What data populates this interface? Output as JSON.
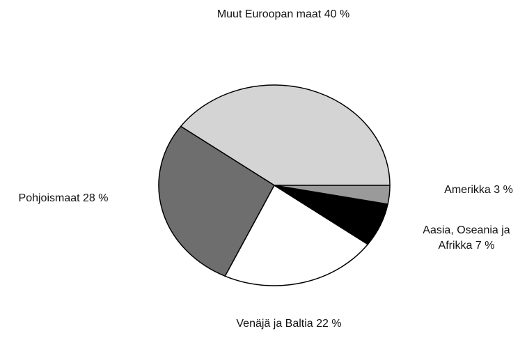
{
  "chart_data": {
    "type": "pie",
    "categories": [
      "Muut Euroopan maat",
      "Pohjoismaat",
      "Venäjä ja Baltia",
      "Aasia, Oseania ja Afrikka",
      "Amerikka"
    ],
    "values": [
      40,
      28,
      22,
      7,
      3
    ],
    "value_labels": [
      "40 %",
      "28 %",
      "22 %",
      "7 %",
      "3 %"
    ],
    "colors": [
      "#d4d4d4",
      "#6e6e6e",
      "#ffffff",
      "#000000",
      "#9a9a9a"
    ]
  }
}
